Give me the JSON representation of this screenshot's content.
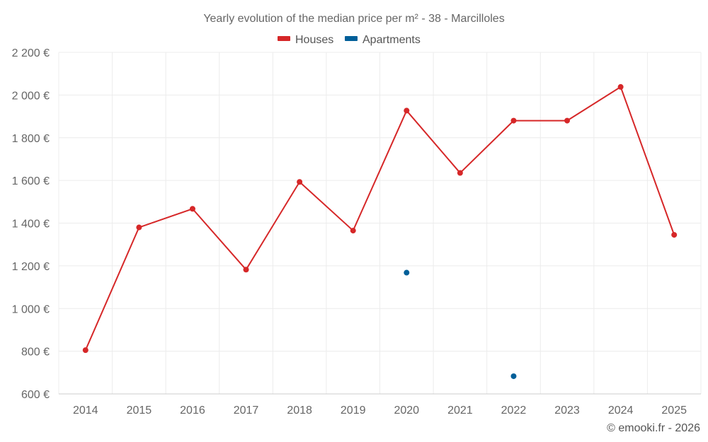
{
  "chart_data": {
    "type": "line",
    "title": "Yearly evolution of the median price per m² - 38 - Marcilloles",
    "categories": [
      "2014",
      "2015",
      "2016",
      "2017",
      "2018",
      "2019",
      "2020",
      "2021",
      "2022",
      "2023",
      "2024",
      "2025"
    ],
    "series": [
      {
        "name": "Houses",
        "color": "#d62728",
        "values": [
          805,
          1380,
          1467,
          1182,
          1593,
          1365,
          1927,
          1635,
          1880,
          1880,
          2038,
          1345
        ]
      },
      {
        "name": "Apartments",
        "color": "#005f99",
        "values": [
          null,
          null,
          null,
          null,
          null,
          null,
          1168,
          null,
          683,
          null,
          null,
          null
        ]
      }
    ],
    "ylim": [
      600,
      2200
    ],
    "yticks": [
      600,
      800,
      1000,
      1200,
      1400,
      1600,
      1800,
      2000,
      2200
    ],
    "ytick_labels": [
      "600 €",
      "800 €",
      "1 000 €",
      "1 200 €",
      "1 400 €",
      "1 600 €",
      "1 800 €",
      "2 000 €",
      "2 200 €"
    ],
    "xlabel": "",
    "ylabel": "",
    "grid": true,
    "legend_position": "top-center"
  },
  "credit": "© emooki.fr - 2026"
}
